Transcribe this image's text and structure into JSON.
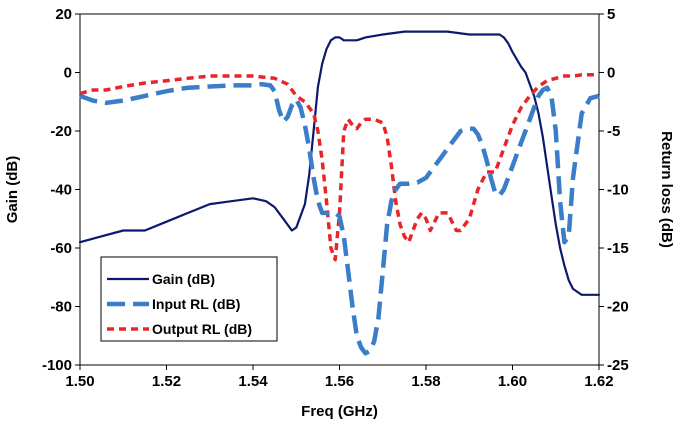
{
  "chart_data": {
    "type": "line",
    "xlabel": "Freq (GHz)",
    "ylabel_left": "Gain (dB)",
    "ylabel_right": "Return loss (dB)",
    "xlim": [
      1.5,
      1.62
    ],
    "ylim_left": [
      -100,
      20
    ],
    "ylim_right": [
      -25,
      5
    ],
    "x_ticks": [
      "1.50",
      "1.52",
      "1.54",
      "1.56",
      "1.58",
      "1.60",
      "1.62"
    ],
    "y_left_ticks": [
      "20",
      "0",
      "-20",
      "-40",
      "-60",
      "-80",
      "-100"
    ],
    "y_right_ticks": [
      "5",
      "0",
      "-5",
      "-10",
      "-15",
      "-20",
      "-25"
    ],
    "grid": false,
    "legend_position": "bottom-left",
    "colors": {
      "gain": "#0a1a6e",
      "input_rl": "#3a7dc9",
      "output_rl": "#e8262a"
    },
    "series": [
      {
        "name": "Gain (dB)",
        "axis": "left",
        "style": "solid",
        "x": [
          1.5,
          1.505,
          1.51,
          1.515,
          1.52,
          1.525,
          1.53,
          1.535,
          1.54,
          1.543,
          1.545,
          1.547,
          1.549,
          1.55,
          1.552,
          1.553,
          1.554,
          1.555,
          1.556,
          1.557,
          1.558,
          1.559,
          1.56,
          1.561,
          1.562,
          1.563,
          1.564,
          1.566,
          1.57,
          1.575,
          1.58,
          1.585,
          1.59,
          1.595,
          1.596,
          1.597,
          1.598,
          1.599,
          1.6,
          1.602,
          1.603,
          1.604,
          1.605,
          1.606,
          1.607,
          1.608,
          1.609,
          1.61,
          1.611,
          1.612,
          1.613,
          1.614,
          1.615,
          1.616,
          1.617,
          1.618,
          1.62
        ],
        "y": [
          -58,
          -56,
          -54,
          -54,
          -51,
          -48,
          -45,
          -44,
          -43,
          -44,
          -46,
          -50,
          -54,
          -53,
          -45,
          -35,
          -20,
          -5,
          3,
          8,
          11,
          12,
          12,
          11,
          11,
          11,
          11,
          12,
          13,
          14,
          14,
          14,
          13,
          13,
          13,
          13,
          12,
          10,
          7,
          2,
          0,
          -4,
          -8,
          -14,
          -22,
          -32,
          -42,
          -52,
          -60,
          -66,
          -71,
          -74,
          -75,
          -76,
          -76,
          -76,
          -76
        ]
      },
      {
        "name": "Input RL (dB)",
        "axis": "right",
        "style": "dashed",
        "x": [
          1.5,
          1.503,
          1.506,
          1.51,
          1.515,
          1.52,
          1.525,
          1.53,
          1.535,
          1.538,
          1.54,
          1.542,
          1.544,
          1.545,
          1.546,
          1.547,
          1.548,
          1.549,
          1.55,
          1.551,
          1.552,
          1.553,
          1.554,
          1.555,
          1.556,
          1.557,
          1.558,
          1.559,
          1.56,
          1.561,
          1.562,
          1.563,
          1.564,
          1.565,
          1.566,
          1.567,
          1.568,
          1.569,
          1.57,
          1.571,
          1.572,
          1.573,
          1.574,
          1.576,
          1.578,
          1.58,
          1.582,
          1.584,
          1.586,
          1.588,
          1.59,
          1.591,
          1.592,
          1.593,
          1.594,
          1.595,
          1.596,
          1.597,
          1.598,
          1.599,
          1.6,
          1.601,
          1.602,
          1.603,
          1.604,
          1.605,
          1.606,
          1.607,
          1.608,
          1.609,
          1.61,
          1.611,
          1.612,
          1.613,
          1.614,
          1.616,
          1.618,
          1.62
        ],
        "y": [
          -2.0,
          -2.4,
          -2.6,
          -2.4,
          -2.0,
          -1.6,
          -1.3,
          -1.2,
          -1.1,
          -1.1,
          -1.1,
          -1.0,
          -1.1,
          -1.6,
          -3.2,
          -4.2,
          -3.8,
          -2.8,
          -2.3,
          -3.0,
          -4.5,
          -6.5,
          -9.0,
          -11.0,
          -12.0,
          -12.0,
          -12.1,
          -12.0,
          -12.3,
          -14.0,
          -17.0,
          -20.0,
          -22.5,
          -23.5,
          -24.0,
          -23.8,
          -23.0,
          -21.0,
          -17.0,
          -13.0,
          -11.0,
          -10.0,
          -9.5,
          -9.5,
          -9.4,
          -9.0,
          -8.0,
          -7.0,
          -6.0,
          -5.0,
          -4.8,
          -4.8,
          -5.3,
          -6.2,
          -7.5,
          -9.0,
          -10.3,
          -10.5,
          -10.0,
          -9.0,
          -8.0,
          -7.0,
          -6.0,
          -5.0,
          -4.0,
          -3.0,
          -2.0,
          -1.5,
          -1.3,
          -2.0,
          -5.0,
          -11.0,
          -14.5,
          -14.0,
          -9.0,
          -3.5,
          -2.2,
          -2.0
        ]
      },
      {
        "name": "Output RL (dB)",
        "axis": "right",
        "style": "dotted",
        "x": [
          1.5,
          1.503,
          1.506,
          1.51,
          1.515,
          1.52,
          1.525,
          1.53,
          1.535,
          1.54,
          1.545,
          1.548,
          1.55,
          1.552,
          1.554,
          1.555,
          1.556,
          1.557,
          1.558,
          1.559,
          1.56,
          1.561,
          1.562,
          1.563,
          1.564,
          1.565,
          1.566,
          1.567,
          1.568,
          1.57,
          1.571,
          1.572,
          1.573,
          1.574,
          1.575,
          1.576,
          1.577,
          1.578,
          1.579,
          1.58,
          1.581,
          1.583,
          1.585,
          1.587,
          1.588,
          1.59,
          1.592,
          1.594,
          1.596,
          1.598,
          1.6,
          1.602,
          1.604,
          1.606,
          1.608,
          1.61,
          1.612,
          1.614,
          1.616,
          1.618,
          1.62
        ],
        "y": [
          -1.8,
          -1.5,
          -1.5,
          -1.2,
          -0.9,
          -0.7,
          -0.5,
          -0.3,
          -0.3,
          -0.3,
          -0.5,
          -1.0,
          -2.0,
          -2.5,
          -3.5,
          -5.0,
          -7.5,
          -11.0,
          -15.0,
          -16.0,
          -12.0,
          -5.0,
          -4.0,
          -4.5,
          -4.8,
          -4.3,
          -4.0,
          -4.0,
          -4.0,
          -4.3,
          -5.5,
          -8.0,
          -11.0,
          -13.0,
          -14.0,
          -14.5,
          -13.5,
          -12.5,
          -12.0,
          -12.5,
          -13.5,
          -12.0,
          -12.0,
          -13.5,
          -13.5,
          -12.5,
          -10.0,
          -8.5,
          -8.5,
          -6.5,
          -4.5,
          -3.0,
          -2.0,
          -1.2,
          -0.7,
          -0.5,
          -0.3,
          -0.3,
          -0.2,
          -0.2,
          -0.2
        ]
      }
    ]
  }
}
